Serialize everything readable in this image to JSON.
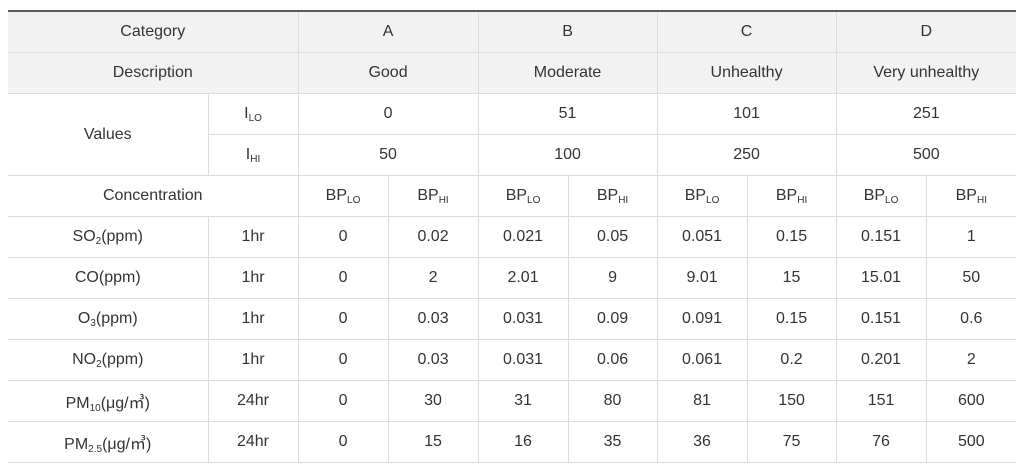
{
  "header": {
    "category_label": "Category",
    "categories": [
      "A",
      "B",
      "C",
      "D"
    ],
    "description_label": "Description",
    "descriptions": [
      "Good",
      "Moderate",
      "Unhealthy",
      "Very unhealthy"
    ]
  },
  "values": {
    "label": "Values",
    "ilo": {
      "base": "I",
      "sub": "LO",
      "vals": [
        "0",
        "51",
        "101",
        "251"
      ]
    },
    "ihi": {
      "base": "I",
      "sub": "HI",
      "vals": [
        "50",
        "100",
        "250",
        "500"
      ]
    }
  },
  "concentration": {
    "label": "Concentration",
    "bplo": {
      "base": "BP",
      "sub": "LO"
    },
    "bphi": {
      "base": "BP",
      "sub": "HI"
    }
  },
  "pollutants": [
    {
      "pre": "SO",
      "sub": "2",
      "post": "(ppm)",
      "time": "1hr",
      "vals": [
        "0",
        "0.02",
        "0.021",
        "0.05",
        "0.051",
        "0.15",
        "0.151",
        "1"
      ]
    },
    {
      "pre": "CO(ppm)",
      "sub": "",
      "post": "",
      "time": "1hr",
      "vals": [
        "0",
        "2",
        "2.01",
        "9",
        "9.01",
        "15",
        "15.01",
        "50"
      ]
    },
    {
      "pre": "O",
      "sub": "3",
      "post": "(ppm)",
      "time": "1hr",
      "vals": [
        "0",
        "0.03",
        "0.031",
        "0.09",
        "0.091",
        "0.15",
        "0.151",
        "0.6"
      ]
    },
    {
      "pre": "NO",
      "sub": "2",
      "post": "(ppm)",
      "time": "1hr",
      "vals": [
        "0",
        "0.03",
        "0.031",
        "0.06",
        "0.061",
        "0.2",
        "0.201",
        "2"
      ]
    },
    {
      "pre": "PM",
      "sub": "10",
      "post": "(μg/㎥)",
      "time": "24hr",
      "vals": [
        "0",
        "30",
        "31",
        "80",
        "81",
        "150",
        "151",
        "600"
      ]
    },
    {
      "pre": "PM",
      "sub": "2.5",
      "post": "(μg/㎥)",
      "time": "24hr",
      "vals": [
        "0",
        "15",
        "16",
        "35",
        "36",
        "75",
        "76",
        "500"
      ]
    }
  ]
}
